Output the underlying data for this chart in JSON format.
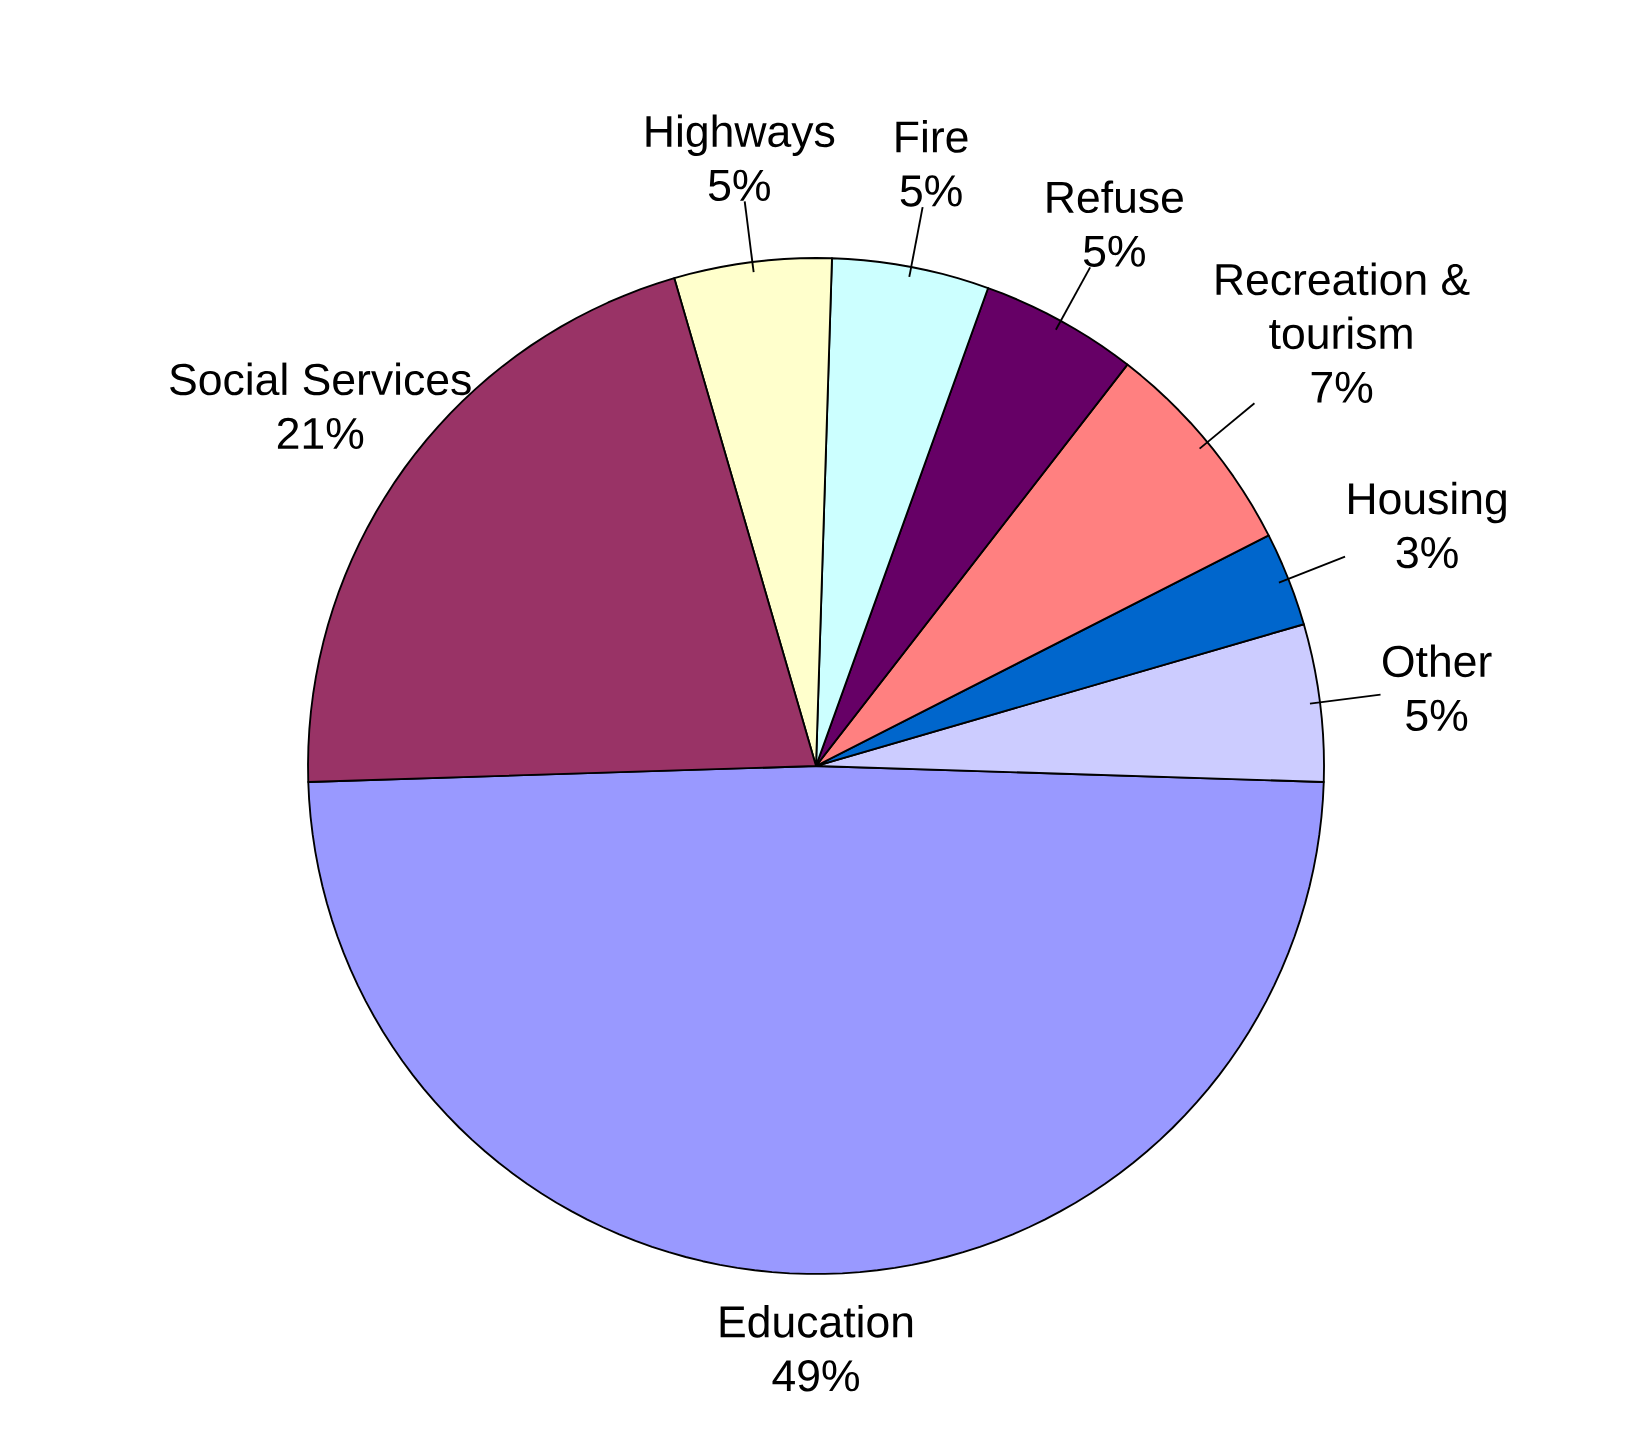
{
  "chart_data": {
    "type": "pie",
    "categories": [
      "Education",
      "Other",
      "Housing",
      "Recreation & tourism",
      "Refuse",
      "Fire",
      "Highways",
      "Social Services"
    ],
    "values": [
      49,
      5,
      3,
      7,
      5,
      5,
      5,
      21
    ],
    "colors": [
      "#9999ff",
      "#ccccff",
      "#0066cc",
      "#ff8080",
      "#660066",
      "#ccffff",
      "#ffffcc",
      "#993366"
    ],
    "value_labels": [
      "49%",
      "5%",
      "3%",
      "7%",
      "5%",
      "5%",
      "5%",
      "21%"
    ]
  }
}
